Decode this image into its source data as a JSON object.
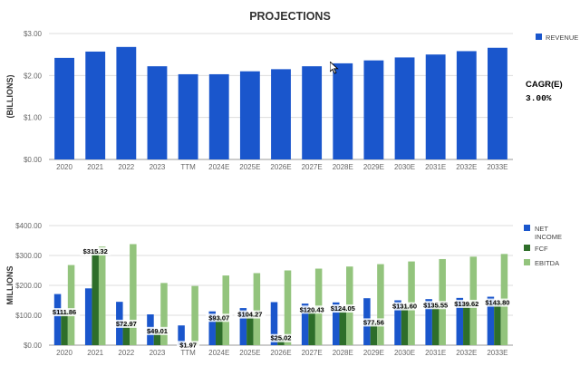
{
  "title": "PROJECTIONS",
  "cagr": {
    "label": "CAGR(E)",
    "value": "3.00%"
  },
  "colors": {
    "revenue": "#1a56cc",
    "net_income": "#1a56cc",
    "fcf": "#2e6e2a",
    "ebitda": "#93c47d",
    "grid": "#dddddd",
    "axis_text": "#666666"
  },
  "chart_data": [
    {
      "type": "bar",
      "title": "PROJECTIONS",
      "ylabel": "(BILLIONS)",
      "xlabel": "",
      "categories": [
        "2020",
        "2021",
        "2022",
        "2023",
        "TTM",
        "2024E",
        "2025E",
        "2026E",
        "2027E",
        "2028E",
        "2029E",
        "2030E",
        "2031E",
        "2032E",
        "2033E"
      ],
      "series": [
        {
          "name": "REVENUE",
          "values": [
            2.42,
            2.57,
            2.68,
            2.22,
            2.03,
            2.03,
            2.1,
            2.15,
            2.22,
            2.29,
            2.36,
            2.43,
            2.5,
            2.58,
            2.66
          ]
        }
      ],
      "ylim": [
        0,
        3
      ],
      "yticks": [
        "$0.00",
        "$1.00",
        "$2.00",
        "$3.00"
      ],
      "legend": "right",
      "grid": true
    },
    {
      "type": "bar",
      "ylabel": "MILLIONS",
      "xlabel": "",
      "categories": [
        "2020",
        "2021",
        "2022",
        "2023",
        "TTM",
        "2024E",
        "2025E",
        "2026E",
        "2027E",
        "2028E",
        "2029E",
        "2030E",
        "2031E",
        "2032E",
        "2033E"
      ],
      "series": [
        {
          "name": "NET INCOME",
          "values": [
            171,
            190,
            145,
            103,
            66,
            113,
            124,
            144,
            139,
            143,
            157,
            150,
            154,
            158,
            162
          ]
        },
        {
          "name": "FCF",
          "values": [
            111.86,
            315.32,
            72.97,
            49.01,
            1.97,
            93.07,
            104.27,
            25.02,
            120.43,
            124.05,
            77.56,
            131.6,
            135.55,
            139.62,
            143.8
          ]
        },
        {
          "name": "EBITDA",
          "values": [
            268,
            330,
            338,
            208,
            198,
            233,
            241,
            250,
            256,
            263,
            271,
            280,
            288,
            296,
            305
          ]
        }
      ],
      "data_labels": [
        "$111.86",
        "$315.32",
        "$72.97",
        "$49.01",
        "$1.97",
        "$93.07",
        "$104.27",
        "$25.02",
        "$120.43",
        "$124.05",
        "$77.56",
        "$131.60",
        "$135.55",
        "$139.62",
        "$143.80"
      ],
      "ylim": [
        0,
        400
      ],
      "yticks": [
        "$0.00",
        "$100.00",
        "$200.00",
        "$300.00",
        "$400.00"
      ],
      "legend": "right",
      "grid": true
    }
  ]
}
